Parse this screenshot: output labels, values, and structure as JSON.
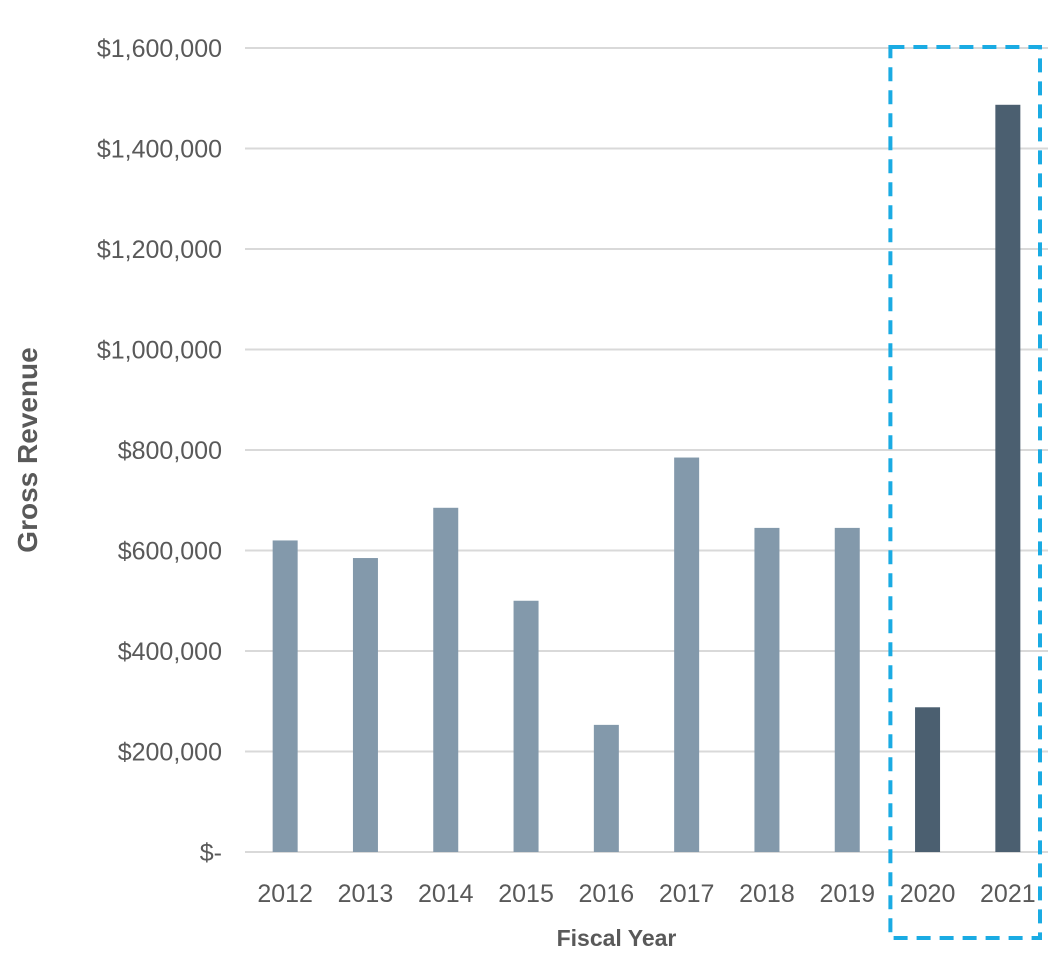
{
  "chart_data": {
    "type": "bar",
    "title": "",
    "xlabel": "Fiscal Year",
    "ylabel": "Gross Revenue",
    "categories": [
      "2012",
      "2013",
      "2014",
      "2015",
      "2016",
      "2017",
      "2018",
      "2019",
      "2020",
      "2021"
    ],
    "values": [
      620000,
      585000,
      685000,
      500000,
      253000,
      785000,
      645000,
      645000,
      288000,
      1487000
    ],
    "ylim": [
      0,
      1600000
    ],
    "yticks": [
      0,
      200000,
      400000,
      600000,
      800000,
      1000000,
      1200000,
      1400000,
      1600000
    ],
    "ytick_labels": [
      "$-",
      "$200,000",
      "$400,000",
      "$600,000",
      "$800,000",
      "$1,000,000",
      "$1,200,000",
      "$1,400,000",
      "$1,600,000"
    ],
    "grid": true,
    "legend": "none",
    "highlight": {
      "style": "dashed-box",
      "categories": [
        "2020",
        "2021"
      ],
      "color": "#1aabe3"
    },
    "colors": {
      "bar": "#8399ab",
      "bar_highlight": "#4b5f70",
      "grid": "#d9d9d9",
      "text": "#595959"
    }
  }
}
